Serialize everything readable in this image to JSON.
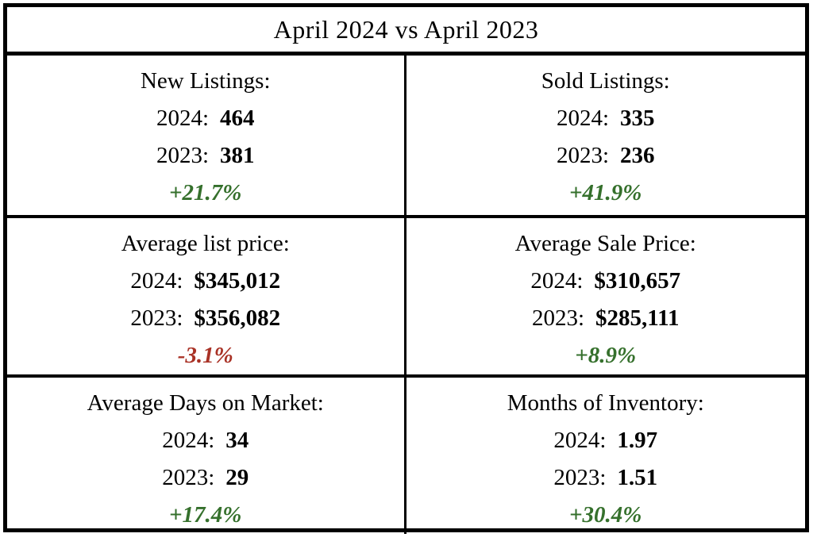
{
  "colors": {
    "positive": "#35702C",
    "negative": "#A93226",
    "border": "#000000",
    "text": "#000000",
    "background": "#FFFFFF"
  },
  "chart_data": {
    "type": "table",
    "title": "April 2024 vs April 2023",
    "year_labels": {
      "y2024": "2024:",
      "y2023": "2023:"
    },
    "legend": "bold black = value, green italic = positive change, red italic = negative change",
    "metrics": [
      {
        "label": "New Listings:",
        "value_2024": "464",
        "value_2023": "381",
        "numeric_2024": 464,
        "numeric_2023": 381,
        "change": "+21.7%",
        "trend": "up"
      },
      {
        "label": "Sold Listings:",
        "value_2024": "335",
        "value_2023": "236",
        "numeric_2024": 335,
        "numeric_2023": 236,
        "change": "+41.9%",
        "trend": "up"
      },
      {
        "label": "Average list price:",
        "value_2024": "$345,012",
        "value_2023": "$356,082",
        "numeric_2024": 345012,
        "numeric_2023": 356082,
        "change": "-3.1%",
        "trend": "down"
      },
      {
        "label": "Average Sale Price:",
        "value_2024": "$310,657",
        "value_2023": "$285,111",
        "numeric_2024": 310657,
        "numeric_2023": 285111,
        "change": "+8.9%",
        "trend": "up"
      },
      {
        "label": "Average Days on Market:",
        "value_2024": "34",
        "value_2023": "29",
        "numeric_2024": 34,
        "numeric_2023": 29,
        "change": "+17.4%",
        "trend": "up"
      },
      {
        "label": "Months of Inventory:",
        "value_2024": "1.97",
        "value_2023": "1.51",
        "numeric_2024": 1.97,
        "numeric_2023": 1.51,
        "change": "+30.4%",
        "trend": "up"
      }
    ]
  }
}
